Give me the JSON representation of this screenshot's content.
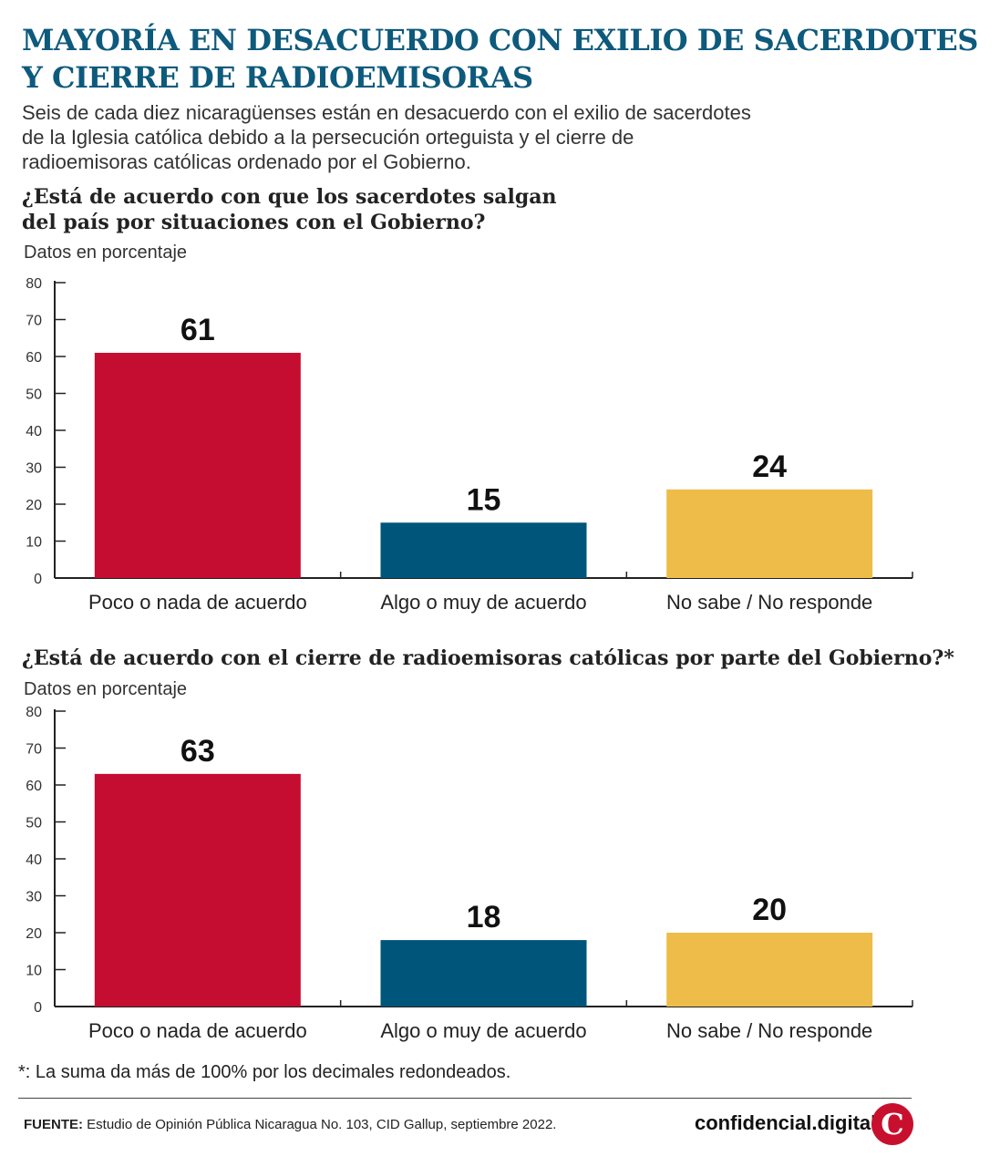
{
  "header": {
    "title": "MAYORÍA EN DESACUERDO CON EXILIO DE SACERDOTES Y CIERRE DE RADIOEMISORAS",
    "subtitle": "Seis de cada diez nicaragüenses están en desacuerdo con el exilio de sacerdotes de la Iglesia católica debido a la persecución orteguista y el cierre de radioemisoras católicas ordenado por el Gobierno."
  },
  "charts": [
    {
      "question": "¿Está de acuerdo con que los sacerdotes salgan del país por situaciones con el Gobierno?",
      "unit": "Datos en porcentaje"
    },
    {
      "question": "¿Está de acuerdo con el cierre de radioemisoras católicas por parte del Gobierno?*",
      "unit": "Datos en porcentaje"
    }
  ],
  "chart_data": [
    {
      "type": "bar",
      "title": "¿Está de acuerdo con que los sacerdotes salgan del país por situaciones con el Gobierno?",
      "ylabel": "Datos en porcentaje",
      "categories": [
        "Poco o nada de acuerdo",
        "Algo o muy de acuerdo",
        "No sabe / No responde"
      ],
      "values": [
        61,
        15,
        24
      ],
      "colors": [
        "#c40d31",
        "#00557a",
        "#eebc48"
      ],
      "ylim": [
        0,
        80
      ],
      "yticks": [
        0,
        10,
        20,
        30,
        40,
        50,
        60,
        70,
        80
      ],
      "grid": false
    },
    {
      "type": "bar",
      "title": "¿Está de acuerdo con el cierre de radioemisoras católicas por parte del Gobierno?*",
      "ylabel": "Datos en porcentaje",
      "categories": [
        "Poco o nada de acuerdo",
        "Algo o muy de acuerdo",
        "No sabe / No responde"
      ],
      "values": [
        63,
        18,
        20
      ],
      "colors": [
        "#c40d31",
        "#00557a",
        "#eebc48"
      ],
      "ylim": [
        0,
        80
      ],
      "yticks": [
        0,
        10,
        20,
        30,
        40,
        50,
        60,
        70,
        80
      ],
      "grid": false
    }
  ],
  "footnote": "*: La suma da más de 100% por los decimales redondeados.",
  "source": {
    "label": "FUENTE:",
    "text": " Estudio de Opinión Pública Nicaragua No. 103, CID Gallup, septiembre 2022."
  },
  "brand": {
    "name": "confidencial.digital",
    "logo_letter": "C",
    "logo_color": "#c8102e"
  }
}
